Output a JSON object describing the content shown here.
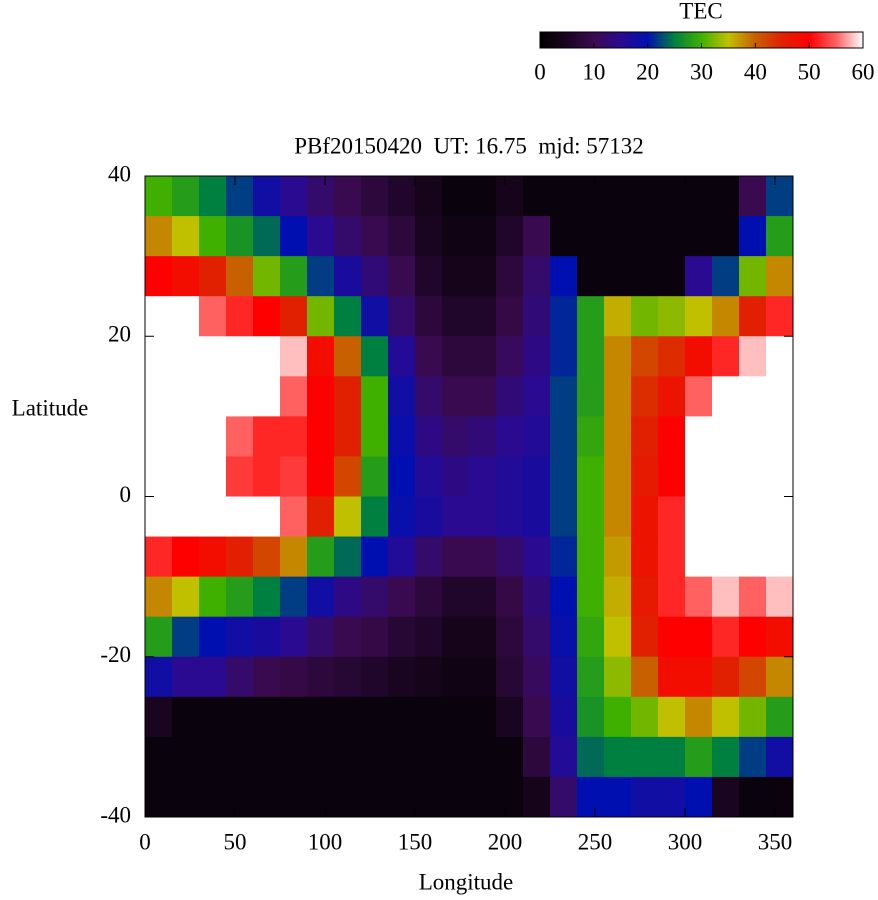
{
  "chart_data": {
    "type": "heatmap",
    "title": "PBf20150420  UT: 16.75  mjd: 57132",
    "xlabel": "Longitude",
    "ylabel": "Latitude",
    "xlim": [
      0,
      360
    ],
    "xticks": [
      0,
      50,
      100,
      150,
      200,
      250,
      300,
      350
    ],
    "ylim": [
      -40,
      40
    ],
    "yticks": [
      -40,
      -20,
      0,
      20,
      40
    ],
    "x": [
      7.5,
      22.5,
      37.5,
      52.5,
      67.5,
      82.5,
      97.5,
      112.5,
      127.5,
      142.5,
      157.5,
      172.5,
      187.5,
      202.5,
      217.5,
      232.5,
      247.5,
      262.5,
      277.5,
      292.5,
      307.5,
      322.5,
      337.5,
      352.5
    ],
    "y": [
      37.5,
      32.5,
      27.5,
      22.5,
      17.5,
      12.5,
      7.5,
      2.5,
      -2.5,
      -7.5,
      -12.5,
      -17.5,
      -22.5,
      -27.5,
      -32.5,
      -37.5
    ],
    "values": [
      [
        30,
        38,
        50,
        60,
        60,
        60,
        60,
        60,
        60,
        52,
        38,
        28,
        18,
        5,
        2,
        2
      ],
      [
        28,
        35,
        48,
        60,
        60,
        60,
        60,
        60,
        60,
        50,
        35,
        22,
        15,
        2,
        2,
        2
      ],
      [
        25,
        30,
        45,
        55,
        60,
        60,
        60,
        60,
        60,
        48,
        30,
        20,
        15,
        2,
        2,
        2
      ],
      [
        22,
        27,
        40,
        52,
        60,
        60,
        55,
        53,
        60,
        45,
        28,
        18,
        12,
        2,
        2,
        2
      ],
      [
        18,
        24,
        32,
        50,
        60,
        60,
        52,
        52,
        60,
        42,
        25,
        17,
        10,
        2,
        2,
        2
      ],
      [
        15,
        20,
        28,
        45,
        58,
        55,
        52,
        53,
        55,
        38,
        22,
        15,
        9,
        2,
        2,
        2
      ],
      [
        12,
        15,
        22,
        32,
        48,
        50,
        50,
        50,
        45,
        28,
        18,
        12,
        8,
        2,
        2,
        2
      ],
      [
        10,
        12,
        17,
        25,
        40,
        45,
        45,
        42,
        35,
        24,
        14,
        10,
        7,
        2,
        2,
        2
      ],
      [
        8,
        10,
        13,
        18,
        25,
        30,
        30,
        28,
        25,
        20,
        12,
        9,
        6,
        2,
        2,
        2
      ],
      [
        6,
        8,
        10,
        12,
        16,
        18,
        19,
        20,
        19,
        16,
        10,
        7,
        5,
        2,
        2,
        2
      ],
      [
        4,
        5,
        6,
        8,
        10,
        12,
        14,
        16,
        17,
        12,
        8,
        6,
        4,
        2,
        2,
        2
      ],
      [
        2,
        3,
        4,
        6,
        8,
        10,
        12,
        14,
        15,
        10,
        6,
        4,
        3,
        2,
        2,
        2
      ],
      [
        2,
        3,
        4,
        6,
        8,
        10,
        13,
        15,
        15,
        10,
        6,
        4,
        3,
        2,
        2,
        2
      ],
      [
        4,
        6,
        8,
        9,
        11,
        13,
        15,
        16,
        16,
        12,
        9,
        8,
        7,
        5,
        2,
        2
      ],
      [
        2,
        10,
        12,
        13,
        14,
        15,
        16,
        17,
        17,
        15,
        13,
        12,
        11,
        10,
        8,
        4
      ],
      [
        2,
        2,
        20,
        21,
        21,
        22,
        22,
        22,
        22,
        21,
        20,
        19,
        18,
        17,
        16,
        12
      ],
      [
        2,
        2,
        2,
        28,
        28,
        28,
        29,
        30,
        30,
        30,
        30,
        29,
        28,
        27,
        24,
        20
      ],
      [
        2,
        2,
        2,
        36,
        38,
        38,
        38,
        38,
        38,
        37,
        36,
        35,
        33,
        30,
        25,
        20
      ],
      [
        2,
        2,
        2,
        32,
        42,
        44,
        45,
        46,
        47,
        47,
        46,
        45,
        40,
        32,
        25,
        18
      ],
      [
        2,
        2,
        2,
        33,
        44,
        47,
        50,
        50,
        52,
        52,
        52,
        50,
        48,
        35,
        25,
        18
      ],
      [
        2,
        2,
        15,
        35,
        48,
        55,
        60,
        60,
        60,
        60,
        55,
        50,
        48,
        38,
        28,
        20
      ],
      [
        2,
        2,
        22,
        38,
        52,
        60,
        60,
        60,
        60,
        60,
        58,
        52,
        45,
        35,
        25,
        5
      ],
      [
        10,
        20,
        32,
        45,
        58,
        60,
        60,
        60,
        60,
        60,
        55,
        50,
        42,
        32,
        22,
        2
      ],
      [
        22,
        28,
        38,
        52,
        60,
        60,
        60,
        60,
        60,
        60,
        58,
        48,
        38,
        28,
        18,
        2
      ]
    ],
    "colorbar": {
      "label": "TEC",
      "lim": [
        0,
        60
      ],
      "ticks": [
        0,
        10,
        20,
        30,
        40,
        50,
        60
      ],
      "colors": [
        "#000000",
        "#1a0520",
        "#3a0a50",
        "#2a0a90",
        "#0010b0",
        "#008040",
        "#40b000",
        "#c0c000",
        "#c86000",
        "#e02000",
        "#ff0000",
        "#ff6060",
        "#ffffff"
      ]
    }
  }
}
